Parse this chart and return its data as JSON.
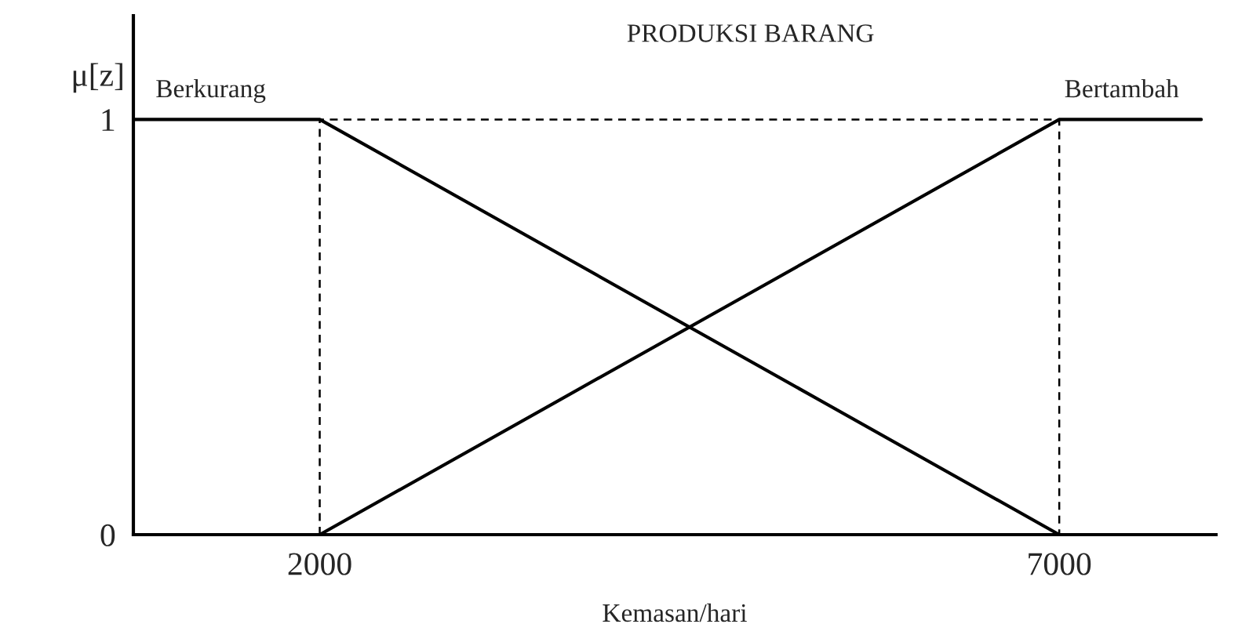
{
  "chart_data": {
    "type": "line",
    "title": "PRODUKSI BARANG",
    "xlabel": "Kemasan/hari",
    "ylabel": "μ[z]",
    "xlim": [
      740,
      8060
    ],
    "ylim": [
      0,
      1.25
    ],
    "xticks": [
      2000,
      7000
    ],
    "yticks": [
      0,
      1
    ],
    "grid": false,
    "legend": false,
    "marker": "none",
    "series": [
      {
        "name": "Berkurang",
        "color": "#000000",
        "x": [
          740,
          2000,
          7000
        ],
        "values": [
          1,
          1,
          0
        ],
        "line_style": "solid"
      },
      {
        "name": "Bertambah",
        "color": "#000000",
        "x": [
          2000,
          7000,
          7960
        ],
        "values": [
          0,
          1,
          1
        ],
        "line_style": "solid"
      },
      {
        "color": "#000000",
        "x": [
          2000,
          2000,
          7000,
          7000
        ],
        "values": [
          0,
          1,
          1,
          0
        ],
        "line_style": "dashed"
      }
    ]
  }
}
